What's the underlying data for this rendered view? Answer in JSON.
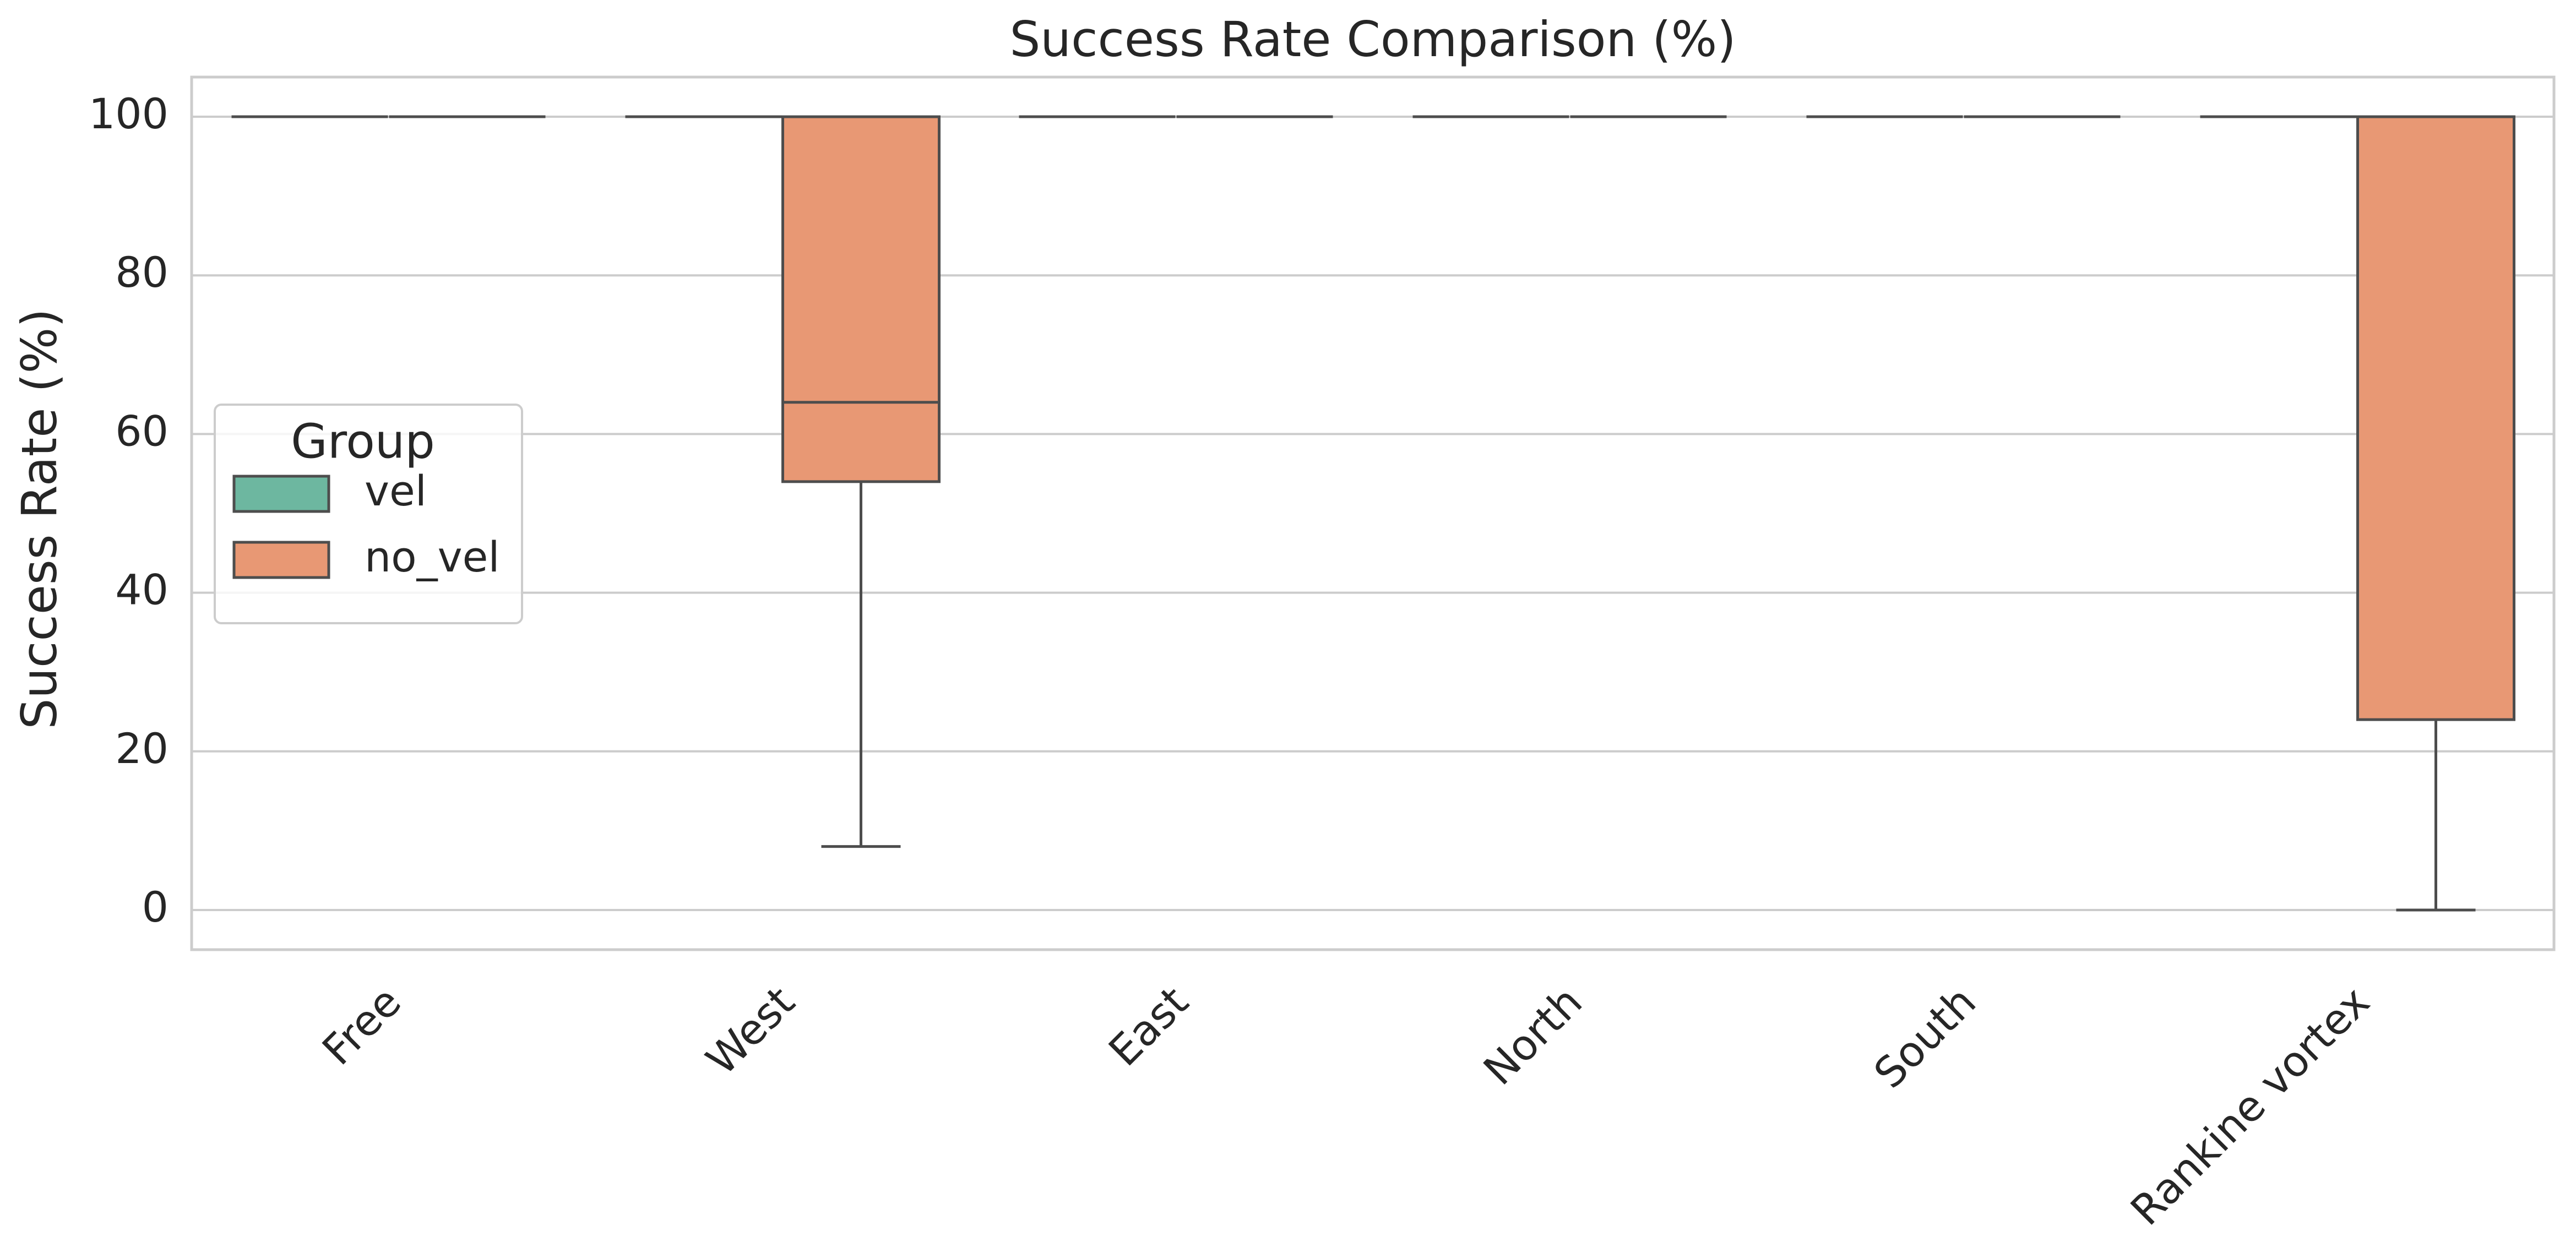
{
  "chart_data": {
    "type": "box",
    "title": "Success Rate Comparison (%)",
    "ylabel": "Success Rate (%)",
    "xlabel": "",
    "categories": [
      "Free",
      "West",
      "East",
      "North",
      "South",
      "Rankine vortex"
    ],
    "yticks": [
      0,
      20,
      40,
      60,
      80,
      100
    ],
    "ylim": [
      -5,
      105
    ],
    "grid": true,
    "legend": {
      "title": "Group",
      "placement": "center-left",
      "entries": [
        "vel",
        "no_vel"
      ]
    },
    "series": [
      {
        "name": "vel",
        "color": "#6DB7A0",
        "boxes": [
          {
            "whisker_low": 100,
            "q1": 100,
            "median": 100,
            "q3": 100,
            "whisker_high": 100
          },
          {
            "whisker_low": 100,
            "q1": 100,
            "median": 100,
            "q3": 100,
            "whisker_high": 100
          },
          {
            "whisker_low": 100,
            "q1": 100,
            "median": 100,
            "q3": 100,
            "whisker_high": 100
          },
          {
            "whisker_low": 100,
            "q1": 100,
            "median": 100,
            "q3": 100,
            "whisker_high": 100
          },
          {
            "whisker_low": 100,
            "q1": 100,
            "median": 100,
            "q3": 100,
            "whisker_high": 100
          },
          {
            "whisker_low": 100,
            "q1": 100,
            "median": 100,
            "q3": 100,
            "whisker_high": 100
          }
        ]
      },
      {
        "name": "no_vel",
        "color": "#E89874",
        "boxes": [
          {
            "whisker_low": 100,
            "q1": 100,
            "median": 100,
            "q3": 100,
            "whisker_high": 100
          },
          {
            "whisker_low": 8,
            "q1": 54,
            "median": 64,
            "q3": 100,
            "whisker_high": 100
          },
          {
            "whisker_low": 100,
            "q1": 100,
            "median": 100,
            "q3": 100,
            "whisker_high": 100
          },
          {
            "whisker_low": 100,
            "q1": 100,
            "median": 100,
            "q3": 100,
            "whisker_high": 100
          },
          {
            "whisker_low": 100,
            "q1": 100,
            "median": 100,
            "q3": 100,
            "whisker_high": 100
          },
          {
            "whisker_low": 0,
            "q1": 24,
            "median": 100,
            "q3": 100,
            "whisker_high": 100
          }
        ]
      }
    ]
  }
}
